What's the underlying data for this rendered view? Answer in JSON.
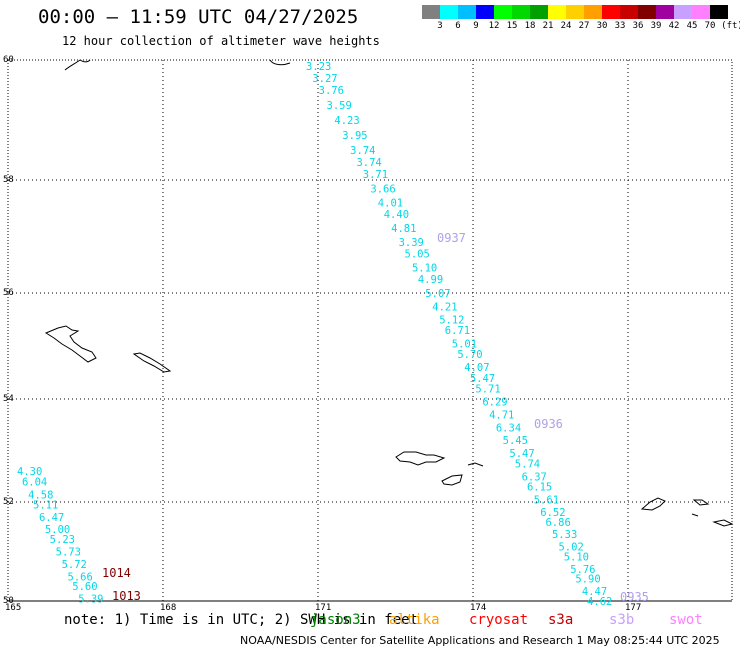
{
  "header": {
    "title": "00:00 – 11:59 UTC 04/27/2025",
    "subtitle": "12 hour collection of altimeter wave heights"
  },
  "legend": {
    "colors": [
      "#808080",
      "#00ffff",
      "#00bfff",
      "#0000ff",
      "#00ff00",
      "#00d800",
      "#00a000",
      "#ffff00",
      "#ffd000",
      "#ffa000",
      "#ff0000",
      "#c80000",
      "#800000",
      "#a000a0",
      "#c8a0ff",
      "#ff80ff",
      "#000000"
    ],
    "ticks": [
      "3",
      "6",
      "9",
      "12",
      "15",
      "18",
      "21",
      "24",
      "27",
      "30",
      "33",
      "36",
      "39",
      "42",
      "45",
      "70",
      "(ft)"
    ]
  },
  "map": {
    "lon_ticks": [
      "165",
      "168",
      "171",
      "174",
      "177"
    ],
    "lat_ticks": [
      "60",
      "58",
      "56",
      "54",
      "52",
      "50"
    ],
    "track_color": "#00d8e8",
    "track_east": [
      {
        "lat": 59.9,
        "v": "3.23"
      },
      {
        "lat": 59.7,
        "v": "3.27"
      },
      {
        "lat": 59.5,
        "v": "3.76"
      },
      {
        "lat": 59.25,
        "v": "3.59"
      },
      {
        "lat": 59.0,
        "v": "4.23"
      },
      {
        "lat": 58.75,
        "v": "3.95"
      },
      {
        "lat": 58.5,
        "v": "3.74"
      },
      {
        "lat": 58.3,
        "v": "3.74"
      },
      {
        "lat": 58.1,
        "v": "3.71"
      },
      {
        "lat": 57.85,
        "v": "3.66"
      },
      {
        "lat": 57.6,
        "v": "4.01"
      },
      {
        "lat": 57.4,
        "v": "4.40"
      },
      {
        "lat": 57.15,
        "v": "4.81"
      },
      {
        "lat": 56.9,
        "v": "3.39"
      },
      {
        "lat": 56.7,
        "v": "5.05"
      },
      {
        "lat": 56.45,
        "v": "5.10"
      },
      {
        "lat": 56.25,
        "v": "4.99"
      },
      {
        "lat": 56.0,
        "v": "5.07"
      },
      {
        "lat": 55.75,
        "v": "4.21"
      },
      {
        "lat": 55.5,
        "v": "5.12"
      },
      {
        "lat": 55.3,
        "v": "6.71"
      },
      {
        "lat": 55.05,
        "v": "5.01"
      },
      {
        "lat": 54.85,
        "v": "5.70"
      },
      {
        "lat": 54.6,
        "v": "4.07"
      },
      {
        "lat": 54.4,
        "v": "5.47"
      },
      {
        "lat": 54.2,
        "v": "5.71"
      },
      {
        "lat": 53.95,
        "v": "6.29"
      },
      {
        "lat": 53.7,
        "v": "4.71"
      },
      {
        "lat": 53.45,
        "v": "6.34"
      },
      {
        "lat": 53.2,
        "v": "5.45"
      },
      {
        "lat": 52.95,
        "v": "5.47"
      },
      {
        "lat": 52.75,
        "v": "5.74"
      },
      {
        "lat": 52.5,
        "v": "6.37"
      },
      {
        "lat": 52.3,
        "v": "6.15"
      },
      {
        "lat": 52.05,
        "v": "5.61"
      },
      {
        "lat": 51.8,
        "v": "6.52"
      },
      {
        "lat": 51.6,
        "v": "6.86"
      },
      {
        "lat": 51.35,
        "v": "5.33"
      },
      {
        "lat": 51.1,
        "v": "5.02"
      },
      {
        "lat": 50.9,
        "v": "5.10"
      },
      {
        "lat": 50.65,
        "v": "5.76"
      },
      {
        "lat": 50.45,
        "v": "5.90"
      },
      {
        "lat": 50.2,
        "v": "4.47"
      },
      {
        "lat": 50.0,
        "v": "4.62"
      }
    ],
    "track_west": [
      {
        "lat": 52.6,
        "v": "4.30"
      },
      {
        "lat": 52.4,
        "v": "6.04"
      },
      {
        "lat": 52.15,
        "v": "4.58"
      },
      {
        "lat": 51.95,
        "v": "5.11"
      },
      {
        "lat": 51.7,
        "v": "6.47"
      },
      {
        "lat": 51.45,
        "v": "5.00"
      },
      {
        "lat": 51.25,
        "v": "5.23"
      },
      {
        "lat": 51.0,
        "v": "5.73"
      },
      {
        "lat": 50.75,
        "v": "5.72"
      },
      {
        "lat": 50.5,
        "v": "5.66"
      },
      {
        "lat": 50.3,
        "v": "5.60"
      },
      {
        "lat": 50.05,
        "v": "5.39"
      }
    ],
    "time_labels": [
      {
        "text": "0937",
        "color": "#b0a0e8"
      },
      {
        "text": "0936",
        "color": "#b0a0e8"
      },
      {
        "text": "0935",
        "color": "#b0a0e8"
      },
      {
        "text": "1014",
        "color": "#800000"
      },
      {
        "text": "1013",
        "color": "#800000"
      }
    ]
  },
  "note": "note: 1) Time is in UTC; 2) SWH is in feet",
  "satellites": [
    {
      "name": "jason3",
      "color": "#008000"
    },
    {
      "name": "altika",
      "color": "#ffa000"
    },
    {
      "name": "cryosat",
      "color": "#ff0000"
    },
    {
      "name": "s3a",
      "color": "#c00000"
    },
    {
      "name": "s3b",
      "color": "#c8a0ff"
    },
    {
      "name": "swot",
      "color": "#ff80ff"
    }
  ],
  "footer": "NOAA/NESDIS Center for Satellite Applications and Research     1 May 08:25:44 UTC 2025"
}
